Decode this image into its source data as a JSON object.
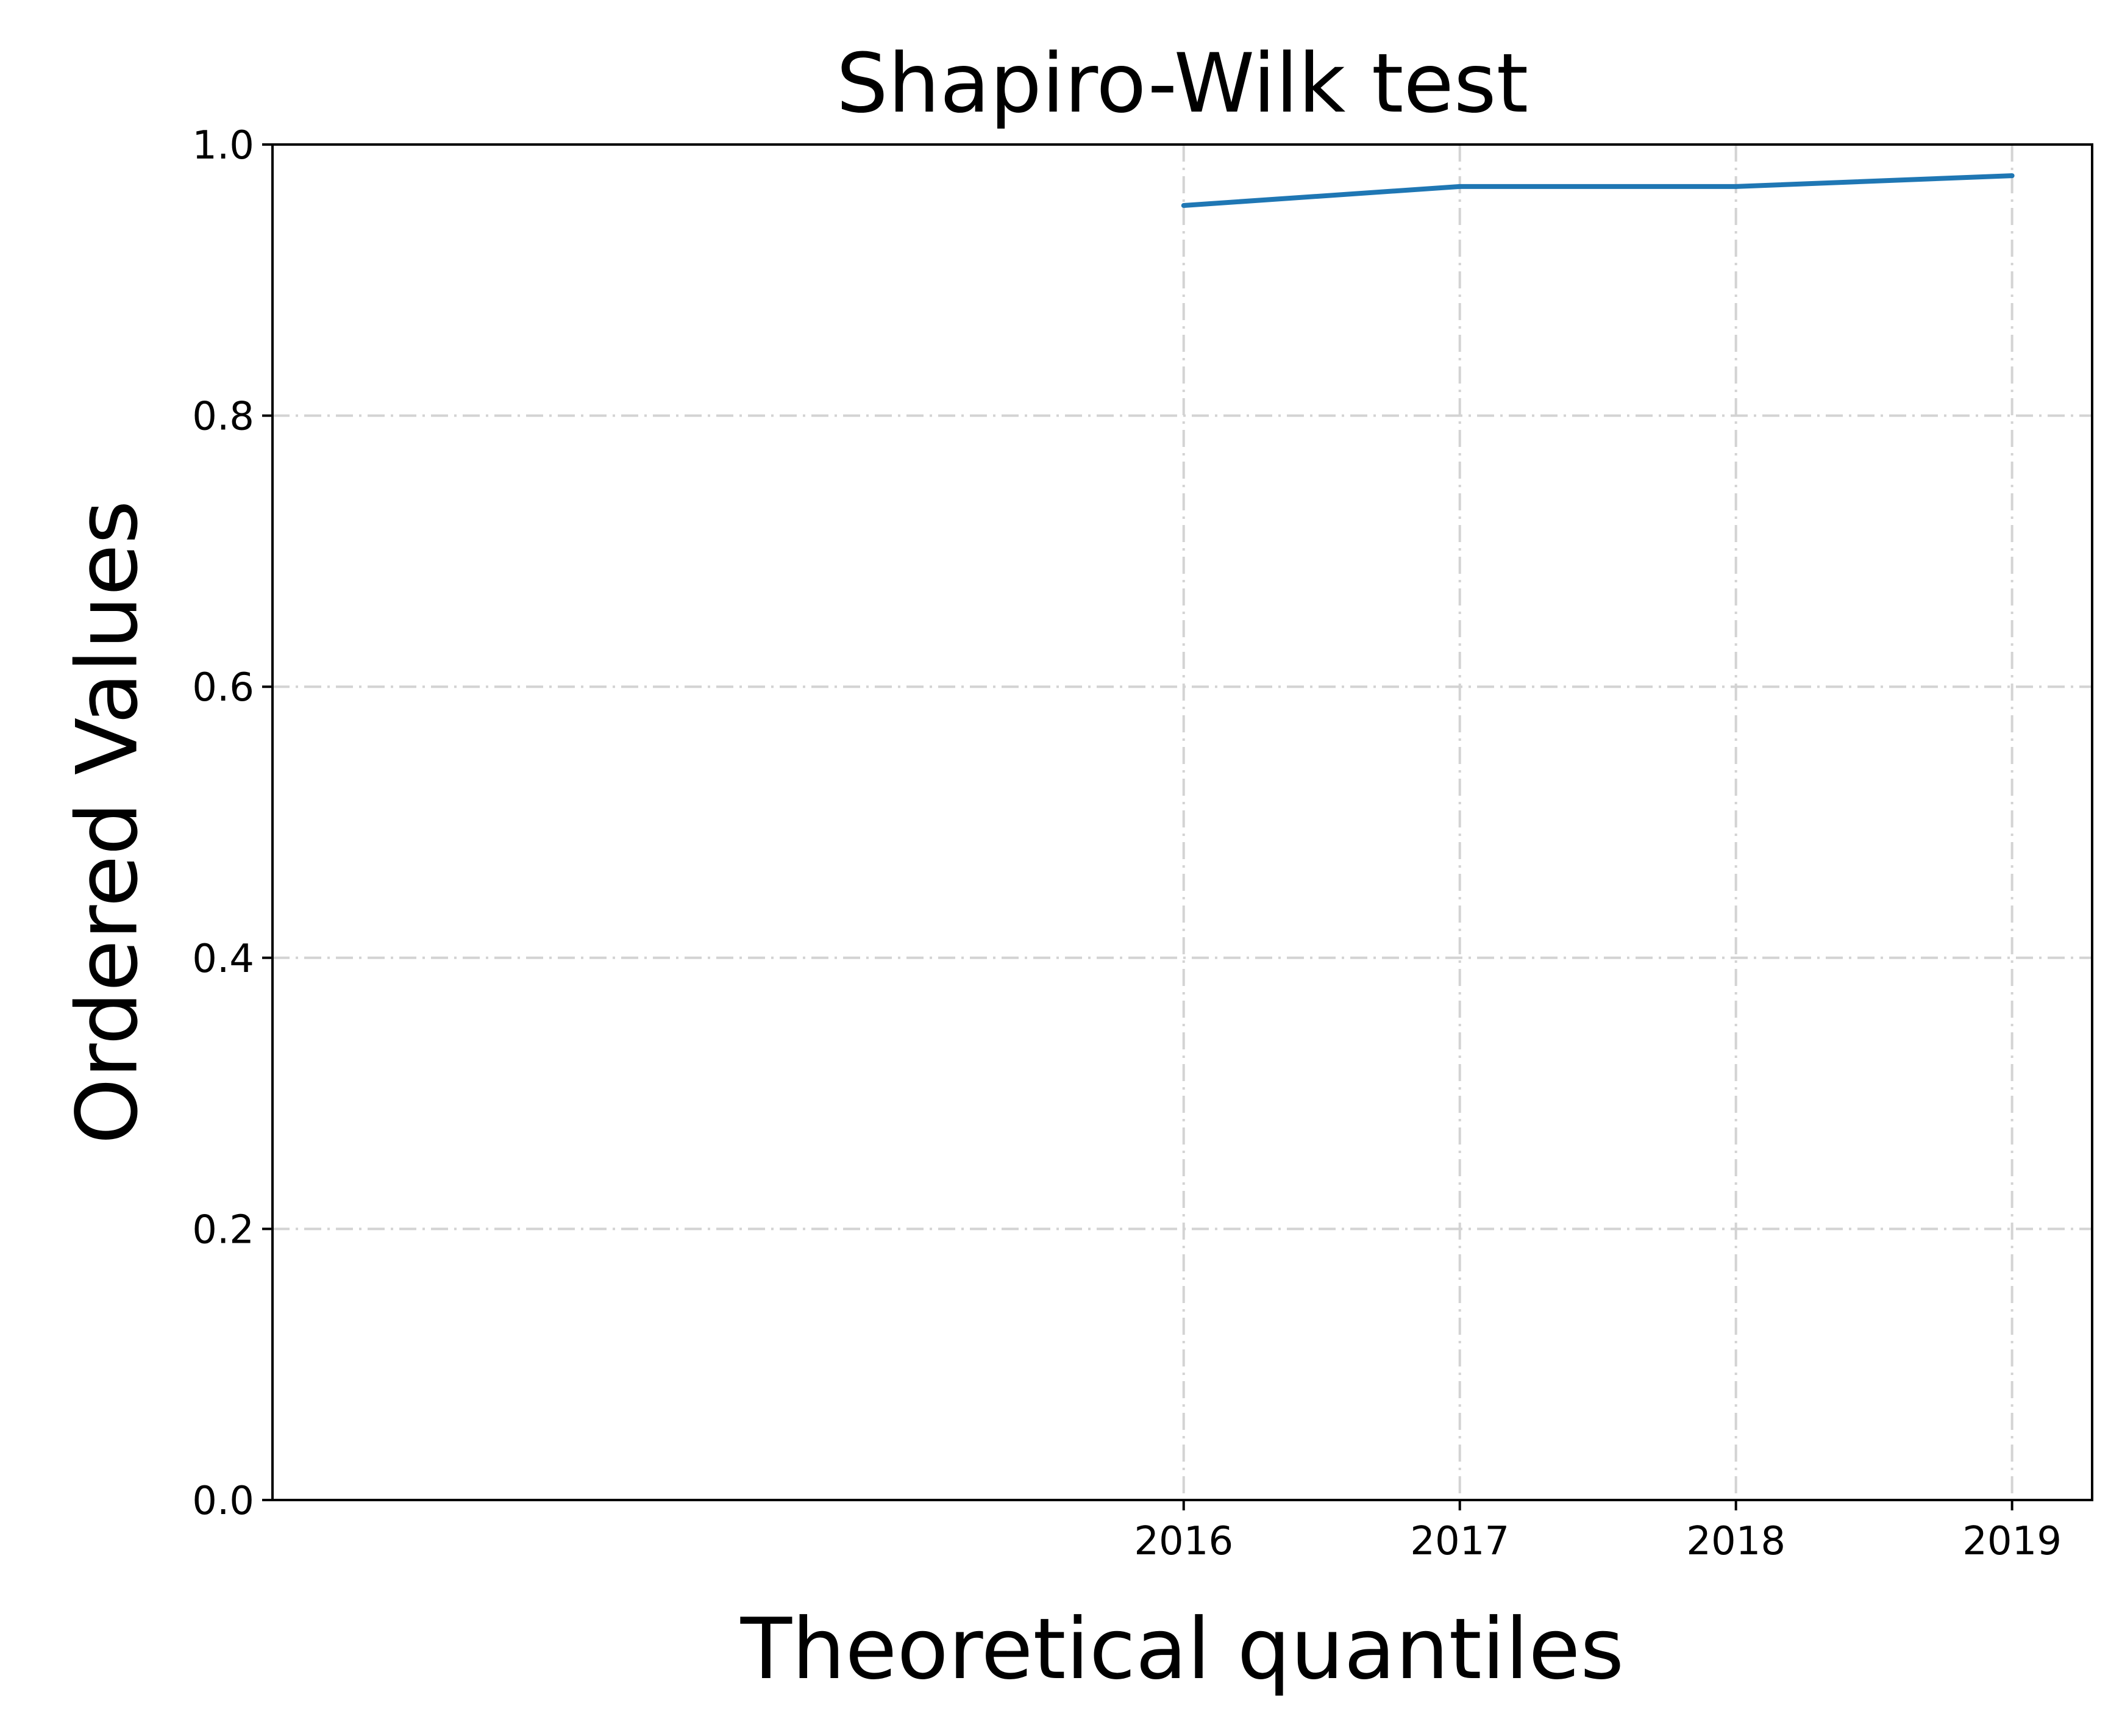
{
  "chart_data": {
    "type": "line",
    "title": "Shapiro-Wilk test",
    "xlabel": "Theoretical quantiles",
    "ylabel": "Ordered Values",
    "x": [
      2016,
      2017,
      2018,
      2019
    ],
    "x_tick_labels": [
      "2016",
      "2017",
      "2018",
      "2019"
    ],
    "xlim": [
      2012.7,
      2019.29
    ],
    "ylim": [
      0.0,
      1.0
    ],
    "y_ticks": [
      0.0,
      0.2,
      0.4,
      0.6,
      0.8,
      1.0
    ],
    "y_tick_labels": [
      "0.0",
      "0.2",
      "0.4",
      "0.6",
      "0.8",
      "1.0"
    ],
    "series": [
      {
        "values": [
          0.955,
          0.969,
          0.969,
          0.977
        ],
        "color": "#1f77b4"
      }
    ],
    "grid": true,
    "legend": "none"
  }
}
